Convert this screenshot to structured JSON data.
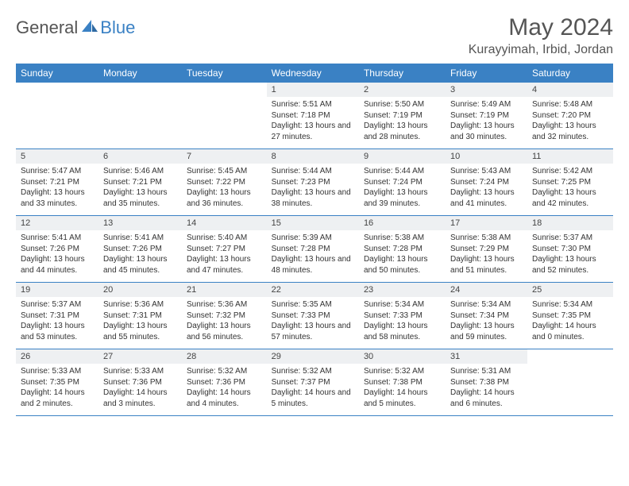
{
  "branding": {
    "text_general": "General",
    "text_blue": "Blue",
    "logo_color": "#3a81c4"
  },
  "header": {
    "month_title": "May 2024",
    "location": "Kurayyimah, Irbid, Jordan"
  },
  "calendar": {
    "header_bg": "#3a81c4",
    "header_fg": "#ffffff",
    "daynum_bg": "#eef0f2",
    "border_color": "#3a81c4",
    "days_of_week": [
      "Sunday",
      "Monday",
      "Tuesday",
      "Wednesday",
      "Thursday",
      "Friday",
      "Saturday"
    ],
    "weeks": [
      [
        null,
        null,
        null,
        {
          "n": "1",
          "sr": "5:51 AM",
          "ss": "7:18 PM",
          "dl": "13 hours and 27 minutes."
        },
        {
          "n": "2",
          "sr": "5:50 AM",
          "ss": "7:19 PM",
          "dl": "13 hours and 28 minutes."
        },
        {
          "n": "3",
          "sr": "5:49 AM",
          "ss": "7:19 PM",
          "dl": "13 hours and 30 minutes."
        },
        {
          "n": "4",
          "sr": "5:48 AM",
          "ss": "7:20 PM",
          "dl": "13 hours and 32 minutes."
        }
      ],
      [
        {
          "n": "5",
          "sr": "5:47 AM",
          "ss": "7:21 PM",
          "dl": "13 hours and 33 minutes."
        },
        {
          "n": "6",
          "sr": "5:46 AM",
          "ss": "7:21 PM",
          "dl": "13 hours and 35 minutes."
        },
        {
          "n": "7",
          "sr": "5:45 AM",
          "ss": "7:22 PM",
          "dl": "13 hours and 36 minutes."
        },
        {
          "n": "8",
          "sr": "5:44 AM",
          "ss": "7:23 PM",
          "dl": "13 hours and 38 minutes."
        },
        {
          "n": "9",
          "sr": "5:44 AM",
          "ss": "7:24 PM",
          "dl": "13 hours and 39 minutes."
        },
        {
          "n": "10",
          "sr": "5:43 AM",
          "ss": "7:24 PM",
          "dl": "13 hours and 41 minutes."
        },
        {
          "n": "11",
          "sr": "5:42 AM",
          "ss": "7:25 PM",
          "dl": "13 hours and 42 minutes."
        }
      ],
      [
        {
          "n": "12",
          "sr": "5:41 AM",
          "ss": "7:26 PM",
          "dl": "13 hours and 44 minutes."
        },
        {
          "n": "13",
          "sr": "5:41 AM",
          "ss": "7:26 PM",
          "dl": "13 hours and 45 minutes."
        },
        {
          "n": "14",
          "sr": "5:40 AM",
          "ss": "7:27 PM",
          "dl": "13 hours and 47 minutes."
        },
        {
          "n": "15",
          "sr": "5:39 AM",
          "ss": "7:28 PM",
          "dl": "13 hours and 48 minutes."
        },
        {
          "n": "16",
          "sr": "5:38 AM",
          "ss": "7:28 PM",
          "dl": "13 hours and 50 minutes."
        },
        {
          "n": "17",
          "sr": "5:38 AM",
          "ss": "7:29 PM",
          "dl": "13 hours and 51 minutes."
        },
        {
          "n": "18",
          "sr": "5:37 AM",
          "ss": "7:30 PM",
          "dl": "13 hours and 52 minutes."
        }
      ],
      [
        {
          "n": "19",
          "sr": "5:37 AM",
          "ss": "7:31 PM",
          "dl": "13 hours and 53 minutes."
        },
        {
          "n": "20",
          "sr": "5:36 AM",
          "ss": "7:31 PM",
          "dl": "13 hours and 55 minutes."
        },
        {
          "n": "21",
          "sr": "5:36 AM",
          "ss": "7:32 PM",
          "dl": "13 hours and 56 minutes."
        },
        {
          "n": "22",
          "sr": "5:35 AM",
          "ss": "7:33 PM",
          "dl": "13 hours and 57 minutes."
        },
        {
          "n": "23",
          "sr": "5:34 AM",
          "ss": "7:33 PM",
          "dl": "13 hours and 58 minutes."
        },
        {
          "n": "24",
          "sr": "5:34 AM",
          "ss": "7:34 PM",
          "dl": "13 hours and 59 minutes."
        },
        {
          "n": "25",
          "sr": "5:34 AM",
          "ss": "7:35 PM",
          "dl": "14 hours and 0 minutes."
        }
      ],
      [
        {
          "n": "26",
          "sr": "5:33 AM",
          "ss": "7:35 PM",
          "dl": "14 hours and 2 minutes."
        },
        {
          "n": "27",
          "sr": "5:33 AM",
          "ss": "7:36 PM",
          "dl": "14 hours and 3 minutes."
        },
        {
          "n": "28",
          "sr": "5:32 AM",
          "ss": "7:36 PM",
          "dl": "14 hours and 4 minutes."
        },
        {
          "n": "29",
          "sr": "5:32 AM",
          "ss": "7:37 PM",
          "dl": "14 hours and 5 minutes."
        },
        {
          "n": "30",
          "sr": "5:32 AM",
          "ss": "7:38 PM",
          "dl": "14 hours and 5 minutes."
        },
        {
          "n": "31",
          "sr": "5:31 AM",
          "ss": "7:38 PM",
          "dl": "14 hours and 6 minutes."
        },
        null
      ]
    ],
    "labels": {
      "sunrise": "Sunrise:",
      "sunset": "Sunset:",
      "daylight": "Daylight:"
    }
  }
}
